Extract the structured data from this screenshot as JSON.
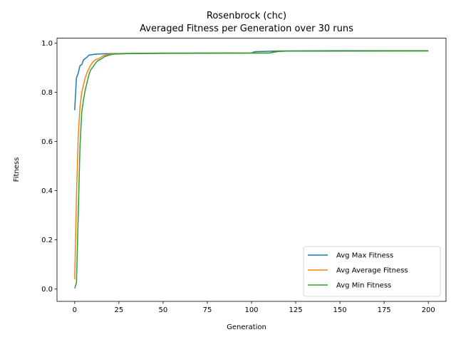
{
  "chart_data": {
    "type": "line",
    "title": "Rosenbrock (chc)",
    "subtitle": "Averaged Fitness per Generation over 30 runs",
    "xlabel": "Generation",
    "ylabel": "Fitness",
    "xlim": [
      -10,
      210
    ],
    "ylim": [
      -0.05,
      1.02
    ],
    "xticks": [
      0,
      25,
      50,
      75,
      100,
      125,
      150,
      175,
      200
    ],
    "yticks": [
      0.0,
      0.2,
      0.4,
      0.6,
      0.8,
      1.0
    ],
    "grid": false,
    "legend_position": "lower-right",
    "series": [
      {
        "name": "Avg Max Fitness",
        "color": "#1f77b4",
        "points": [
          [
            0,
            0.727
          ],
          [
            1,
            0.858
          ],
          [
            2,
            0.878
          ],
          [
            3,
            0.908
          ],
          [
            4,
            0.912
          ],
          [
            5,
            0.932
          ],
          [
            6,
            0.937
          ],
          [
            7,
            0.943
          ],
          [
            8,
            0.951
          ],
          [
            10,
            0.953
          ],
          [
            12,
            0.955
          ],
          [
            15,
            0.956
          ],
          [
            20,
            0.957
          ],
          [
            50,
            0.959
          ],
          [
            100,
            0.96
          ],
          [
            102,
            0.965
          ],
          [
            108,
            0.966
          ],
          [
            115,
            0.968
          ],
          [
            150,
            0.969
          ],
          [
            200,
            0.969
          ]
        ]
      },
      {
        "name": "Avg Average Fitness",
        "color": "#ff7f0e",
        "points": [
          [
            0,
            0.04
          ],
          [
            1,
            0.37
          ],
          [
            2,
            0.62
          ],
          [
            3,
            0.74
          ],
          [
            4,
            0.8
          ],
          [
            5,
            0.83
          ],
          [
            6,
            0.86
          ],
          [
            7,
            0.88
          ],
          [
            8,
            0.895
          ],
          [
            9,
            0.91
          ],
          [
            10,
            0.92
          ],
          [
            11,
            0.928
          ],
          [
            12,
            0.933
          ],
          [
            14,
            0.938
          ],
          [
            16,
            0.948
          ],
          [
            18,
            0.952
          ],
          [
            20,
            0.955
          ],
          [
            25,
            0.957
          ],
          [
            50,
            0.958
          ],
          [
            110,
            0.96
          ],
          [
            115,
            0.966
          ],
          [
            120,
            0.967
          ],
          [
            200,
            0.968
          ]
        ]
      },
      {
        "name": "Avg Min Fitness",
        "color": "#2ca02c",
        "points": [
          [
            0,
            0.003
          ],
          [
            1,
            0.025
          ],
          [
            2,
            0.3
          ],
          [
            3,
            0.58
          ],
          [
            4,
            0.72
          ],
          [
            5,
            0.77
          ],
          [
            6,
            0.81
          ],
          [
            7,
            0.84
          ],
          [
            8,
            0.87
          ],
          [
            9,
            0.89
          ],
          [
            10,
            0.9
          ],
          [
            11,
            0.91
          ],
          [
            12,
            0.92
          ],
          [
            13,
            0.928
          ],
          [
            15,
            0.935
          ],
          [
            17,
            0.945
          ],
          [
            19,
            0.95
          ],
          [
            22,
            0.955
          ],
          [
            30,
            0.957
          ],
          [
            50,
            0.958
          ],
          [
            110,
            0.959
          ],
          [
            112,
            0.962
          ],
          [
            116,
            0.966
          ],
          [
            120,
            0.967
          ],
          [
            200,
            0.968
          ]
        ]
      }
    ]
  }
}
